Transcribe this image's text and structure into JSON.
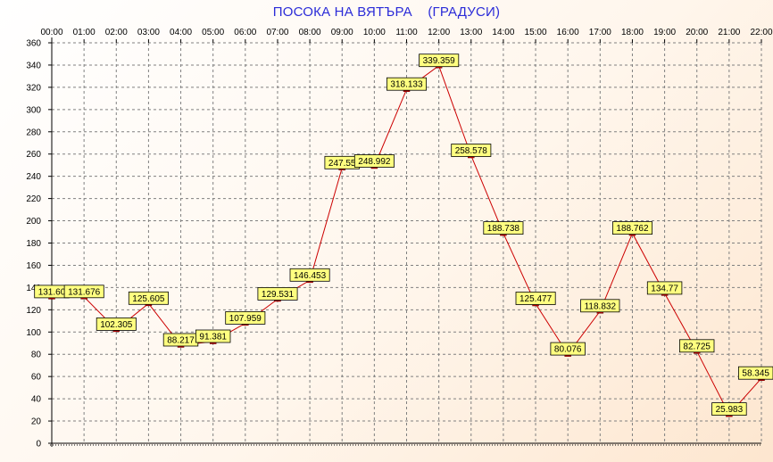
{
  "chart_data": {
    "type": "line",
    "title": "ПОСОКА НА ВЯТЪРА    (ГРАДУСИ)",
    "categories": [
      "00:00",
      "01:00",
      "02:00",
      "03:00",
      "04:00",
      "05:00",
      "06:00",
      "07:00",
      "08:00",
      "09:00",
      "10:00",
      "11:00",
      "12:00",
      "13:00",
      "14:00",
      "15:00",
      "16:00",
      "17:00",
      "18:00",
      "19:00",
      "20:00",
      "21:00",
      "22:00"
    ],
    "values": [
      131.6,
      131.676,
      102.305,
      125.605,
      88.217,
      91.381,
      107.959,
      129.531,
      146.453,
      247.55,
      248.992,
      318.133,
      339.359,
      258.578,
      188.738,
      125.477,
      80.076,
      118.832,
      188.762,
      134.77,
      82.725,
      25.983,
      58.345
    ],
    "data_labels": [
      "131.60",
      "131.676",
      "102.305",
      "125.605",
      "88.217",
      "91.381",
      "107.959",
      "129.531",
      "146.453",
      "247.55",
      "248.992",
      "318.133",
      "339.359",
      "258.578",
      "188.738",
      "125.477",
      "80.076",
      "118.832",
      "188.762",
      "134.77",
      "82.725",
      "25.983",
      "58.345"
    ],
    "ylim": [
      0,
      360
    ],
    "yticks": [
      0,
      20,
      40,
      60,
      80,
      100,
      120,
      140,
      160,
      180,
      200,
      220,
      240,
      260,
      280,
      300,
      320,
      340,
      360
    ],
    "xticks_position": "top",
    "grid": true,
    "colors": {
      "line": "#cc0000",
      "marker": "#cc0000",
      "label_fill": "#ffff80",
      "label_border": "#000000",
      "grid": "#808080",
      "title": "#2b2bd8"
    }
  }
}
